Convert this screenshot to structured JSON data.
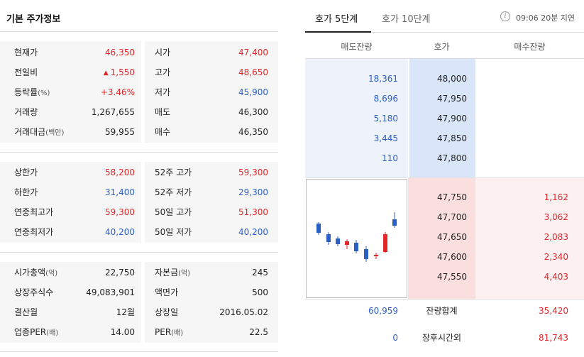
{
  "left": {
    "title": "기본 주가정보",
    "section1": [
      {
        "l_label": "현재가",
        "l_sub": "",
        "l_value": "46,350",
        "l_color": "red",
        "l_arrow": "",
        "r_label": "시가",
        "r_sub": "",
        "r_value": "47,400",
        "r_color": "red"
      },
      {
        "l_label": "전일비",
        "l_sub": "",
        "l_value": "1,550",
        "l_color": "red",
        "l_arrow": "▲",
        "r_label": "고가",
        "r_sub": "",
        "r_value": "48,650",
        "r_color": "red"
      },
      {
        "l_label": "등락률",
        "l_sub": "(%)",
        "l_value": "+3.46%",
        "l_color": "red",
        "l_arrow": "",
        "r_label": "저가",
        "r_sub": "",
        "r_value": "45,900",
        "r_color": "blue"
      },
      {
        "l_label": "거래량",
        "l_sub": "",
        "l_value": "1,267,655",
        "l_color": "black",
        "l_arrow": "",
        "r_label": "매도",
        "r_sub": "",
        "r_value": "46,300",
        "r_color": "black"
      },
      {
        "l_label": "거래대금",
        "l_sub": "(백만)",
        "l_value": "59,955",
        "l_color": "black",
        "l_arrow": "",
        "r_label": "매수",
        "r_sub": "",
        "r_value": "46,350",
        "r_color": "black"
      }
    ],
    "section2": [
      {
        "l_label": "상한가",
        "l_sub": "",
        "l_value": "58,200",
        "l_color": "red",
        "l_arrow": "",
        "r_label": "52주 고가",
        "r_sub": "",
        "r_value": "59,300",
        "r_color": "red"
      },
      {
        "l_label": "하한가",
        "l_sub": "",
        "l_value": "31,400",
        "l_color": "blue",
        "l_arrow": "",
        "r_label": "52주 저가",
        "r_sub": "",
        "r_value": "29,300",
        "r_color": "blue"
      },
      {
        "l_label": "연중최고가",
        "l_sub": "",
        "l_value": "59,300",
        "l_color": "red",
        "l_arrow": "",
        "r_label": "50일 고가",
        "r_sub": "",
        "r_value": "51,300",
        "r_color": "red"
      },
      {
        "l_label": "연중최저가",
        "l_sub": "",
        "l_value": "40,200",
        "l_color": "blue",
        "l_arrow": "",
        "r_label": "50일 저가",
        "r_sub": "",
        "r_value": "40,200",
        "r_color": "blue"
      }
    ],
    "section3": [
      {
        "l_label": "시가총액",
        "l_sub": "(억)",
        "l_value": "22,750",
        "l_color": "black",
        "l_arrow": "",
        "r_label": "자본금",
        "r_sub": "(억)",
        "r_value": "245",
        "r_color": "black"
      },
      {
        "l_label": "상장주식수",
        "l_sub": "",
        "l_value": "49,083,901",
        "l_color": "black",
        "l_arrow": "",
        "r_label": "액면가",
        "r_sub": "",
        "r_value": "500",
        "r_color": "black"
      },
      {
        "l_label": "결산월",
        "l_sub": "",
        "l_value": "12월",
        "l_color": "black",
        "l_arrow": "",
        "r_label": "상장일",
        "r_sub": "",
        "r_value": "2016.05.02",
        "r_color": "black"
      },
      {
        "l_label": "업종PER",
        "l_sub": "(배)",
        "l_value": "14.00",
        "l_color": "black",
        "l_arrow": "",
        "r_label": "PER",
        "r_sub": "(배)",
        "r_value": "22.5",
        "r_color": "black"
      }
    ]
  },
  "right": {
    "tabs": [
      {
        "label": "호가 5단계",
        "active": true
      },
      {
        "label": "호가 10단계",
        "active": false
      }
    ],
    "info_icon": "i",
    "delay_text": "09:06 20분 지연",
    "headers": {
      "sell": "매도잔량",
      "price": "호가",
      "buy": "매수잔량"
    },
    "asks": [
      {
        "qty": "18,361",
        "price": "48,000"
      },
      {
        "qty": "8,696",
        "price": "47,950"
      },
      {
        "qty": "5,180",
        "price": "47,900"
      },
      {
        "qty": "3,445",
        "price": "47,850"
      },
      {
        "qty": "110",
        "price": "47,800"
      }
    ],
    "bids": [
      {
        "price": "47,750",
        "qty": "1,162"
      },
      {
        "price": "47,700",
        "qty": "3,062"
      },
      {
        "price": "47,650",
        "qty": "2,083"
      },
      {
        "price": "47,600",
        "qty": "2,340"
      },
      {
        "price": "47,550",
        "qty": "4,403"
      }
    ],
    "totals": {
      "sell": "60,959",
      "label": "잔량합계",
      "buy": "35,420"
    },
    "after_hours": {
      "sell": "0",
      "label": "장후시간외",
      "buy": "81,743"
    },
    "colors": {
      "up": "#e0272a",
      "down": "#2b5fc4"
    }
  }
}
